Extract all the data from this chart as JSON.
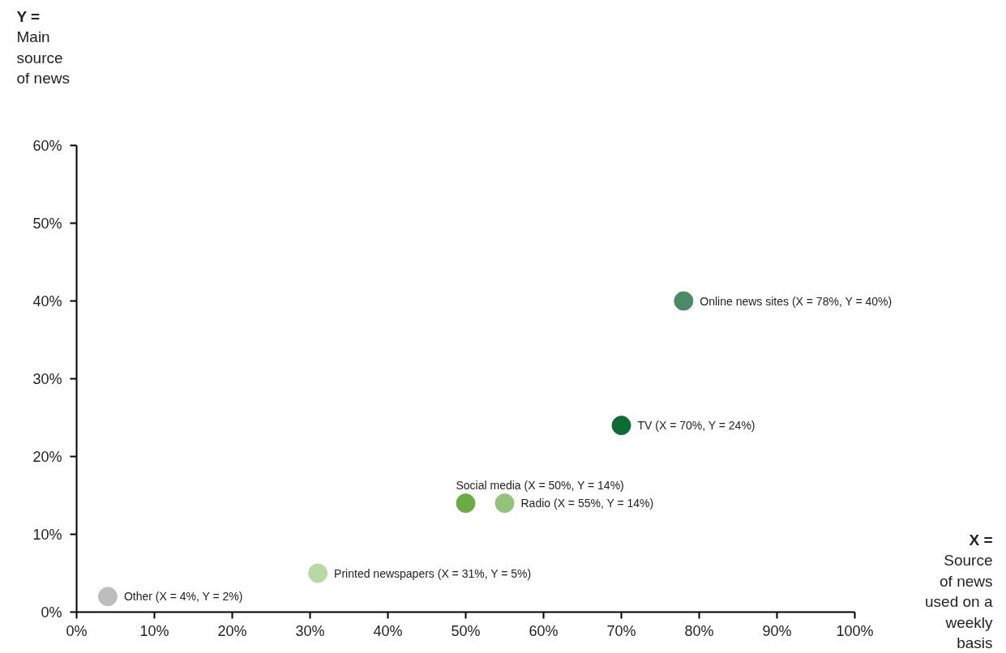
{
  "chart_data": {
    "type": "scatter",
    "xlabel": "X =\nSource\nof news\nused on a\nweekly\nbasis",
    "ylabel": "Y =\nMain\nsource\nof news",
    "xlim": [
      0,
      100
    ],
    "ylim": [
      0,
      60
    ],
    "xticks": [
      {
        "value": 0,
        "label": "0%"
      },
      {
        "value": 10,
        "label": "10%"
      },
      {
        "value": 20,
        "label": "20%"
      },
      {
        "value": 30,
        "label": "30%"
      },
      {
        "value": 40,
        "label": "40%"
      },
      {
        "value": 50,
        "label": "50%"
      },
      {
        "value": 60,
        "label": "60%"
      },
      {
        "value": 70,
        "label": "70%"
      },
      {
        "value": 80,
        "label": "80%"
      },
      {
        "value": 90,
        "label": "90%"
      },
      {
        "value": 100,
        "label": "100%"
      }
    ],
    "yticks": [
      {
        "value": 0,
        "label": "0%"
      },
      {
        "value": 10,
        "label": "10%"
      },
      {
        "value": 20,
        "label": "20%"
      },
      {
        "value": 30,
        "label": "30%"
      },
      {
        "value": 40,
        "label": "40%"
      },
      {
        "value": 50,
        "label": "50%"
      },
      {
        "value": 60,
        "label": "60%"
      }
    ],
    "grid": false,
    "marker": "circle",
    "series": [
      {
        "name": "Online news sites",
        "color": "#4a8a64",
        "x": [
          78
        ],
        "values": [
          40
        ],
        "value_labels": [
          "(X = 78%, Y = 40%)"
        ]
      },
      {
        "name": "TV",
        "color": "#0d6b34",
        "x": [
          70
        ],
        "values": [
          24
        ],
        "value_labels": [
          "(X = 70%, Y = 24%)"
        ]
      },
      {
        "name": "Social media",
        "color": "#6aab46",
        "x": [
          50
        ],
        "values": [
          14
        ],
        "value_labels": [
          "(X = 50%, Y = 14%)"
        ]
      },
      {
        "name": "Radio",
        "color": "#93c27a",
        "x": [
          55
        ],
        "values": [
          14
        ],
        "value_labels": [
          "(X = 55%, Y = 14%)"
        ]
      },
      {
        "name": "Printed newspapers",
        "color": "#b6d9a6",
        "x": [
          31
        ],
        "values": [
          5
        ],
        "value_labels": [
          "(X = 31%, Y = 5%)"
        ]
      },
      {
        "name": "Other",
        "color": "#bdbdbd",
        "x": [
          4
        ],
        "values": [
          2
        ],
        "value_labels": [
          "(X = 4%, Y = 2%)"
        ]
      }
    ]
  }
}
